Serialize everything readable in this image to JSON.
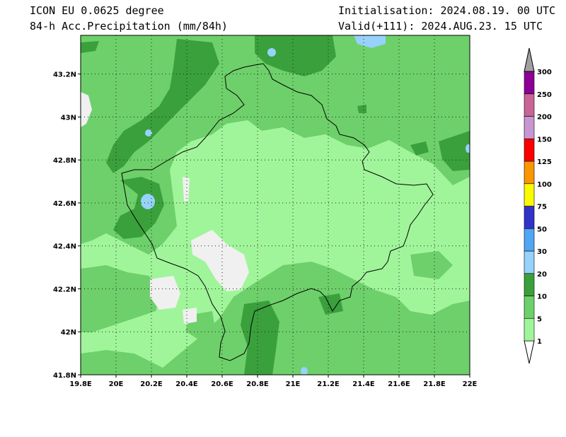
{
  "header": {
    "model": "ICON EU 0.0625 degree",
    "field": "84-h Acc.Precipitation (mm/84h)",
    "init": "Initialisation: 2024.08.19. 00 UTC",
    "valid": "Valid(+111): 2024.AUG.23. 15 UTC"
  },
  "map": {
    "lon_ticks": [
      "19.8E",
      "20E",
      "20.2E",
      "20.4E",
      "20.6E",
      "20.8E",
      "21E",
      "21.2E",
      "21.4E",
      "21.6E",
      "21.8E",
      "22E"
    ],
    "lat_ticks": [
      "41.8N",
      "42N",
      "42.2N",
      "42.4N",
      "42.6N",
      "42.8N",
      "43N",
      "43.2N"
    ],
    "lon_range": [
      19.8,
      22.0
    ],
    "lat_range": [
      41.8,
      43.38
    ]
  },
  "legend": {
    "levels": [
      {
        "label": "1",
        "color": "#a0f59a"
      },
      {
        "label": "5",
        "color": "#6ed06a"
      },
      {
        "label": "10",
        "color": "#3aa03c"
      },
      {
        "label": "20",
        "color": "#96d2fa"
      },
      {
        "label": "30",
        "color": "#50a5f5"
      },
      {
        "label": "50",
        "color": "#3232c8"
      },
      {
        "label": "75",
        "color": "#fafa00"
      },
      {
        "label": "100",
        "color": "#fa9600"
      },
      {
        "label": "125",
        "color": "#fa0000"
      },
      {
        "label": "150",
        "color": "#c896d2"
      },
      {
        "label": "200",
        "color": "#c86496"
      },
      {
        "label": "250",
        "color": "#8c0096"
      },
      {
        "label": "300",
        "color": "#a0a0a0"
      }
    ]
  }
}
